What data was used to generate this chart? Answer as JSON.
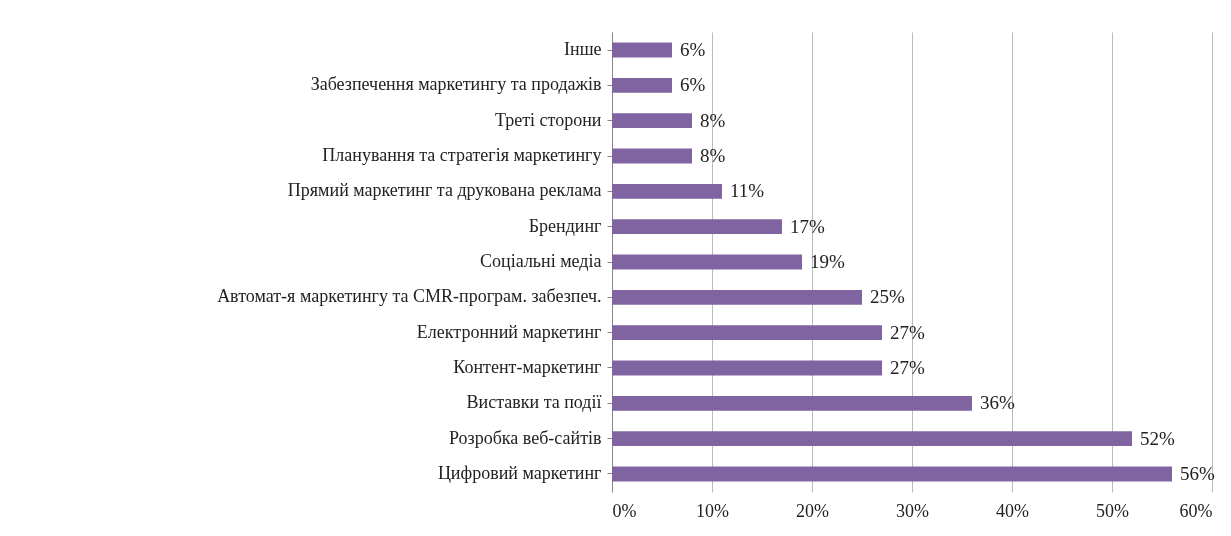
{
  "chart_data": {
    "type": "bar",
    "orientation": "horizontal",
    "categories": [
      "Інше",
      "Забезпечення маркетингу та продажів",
      "Треті сторони",
      "Планування та стратегія маркетингу",
      "Прямий маркетинг та друкована реклама",
      "Брендинг",
      "Соціальні медіа",
      "Автомат-я маркетингу та CMR-програм. забезпеч.",
      "Електронний маркетинг",
      "Контент-маркетинг",
      "Виставки та події",
      "Розробка веб-сайтів",
      "Цифровий маркетинг"
    ],
    "values": [
      6,
      6,
      8,
      8,
      11,
      17,
      19,
      25,
      27,
      27,
      36,
      52,
      56
    ],
    "value_labels": [
      "6%",
      "6%",
      "8%",
      "8%",
      "11%",
      "17%",
      "19%",
      "25%",
      "27%",
      "27%",
      "36%",
      "52%",
      "56%"
    ],
    "color": "#8064a2",
    "xlim": [
      0,
      60
    ],
    "xticks": [
      {
        "value": 0,
        "label": "0%"
      },
      {
        "value": 10,
        "label": "10%"
      },
      {
        "value": 20,
        "label": "20%"
      },
      {
        "value": 30,
        "label": "30%"
      },
      {
        "value": 40,
        "label": "40%"
      },
      {
        "value": 50,
        "label": "50%"
      },
      {
        "value": 60,
        "label": "60%"
      }
    ],
    "grid": "x"
  }
}
